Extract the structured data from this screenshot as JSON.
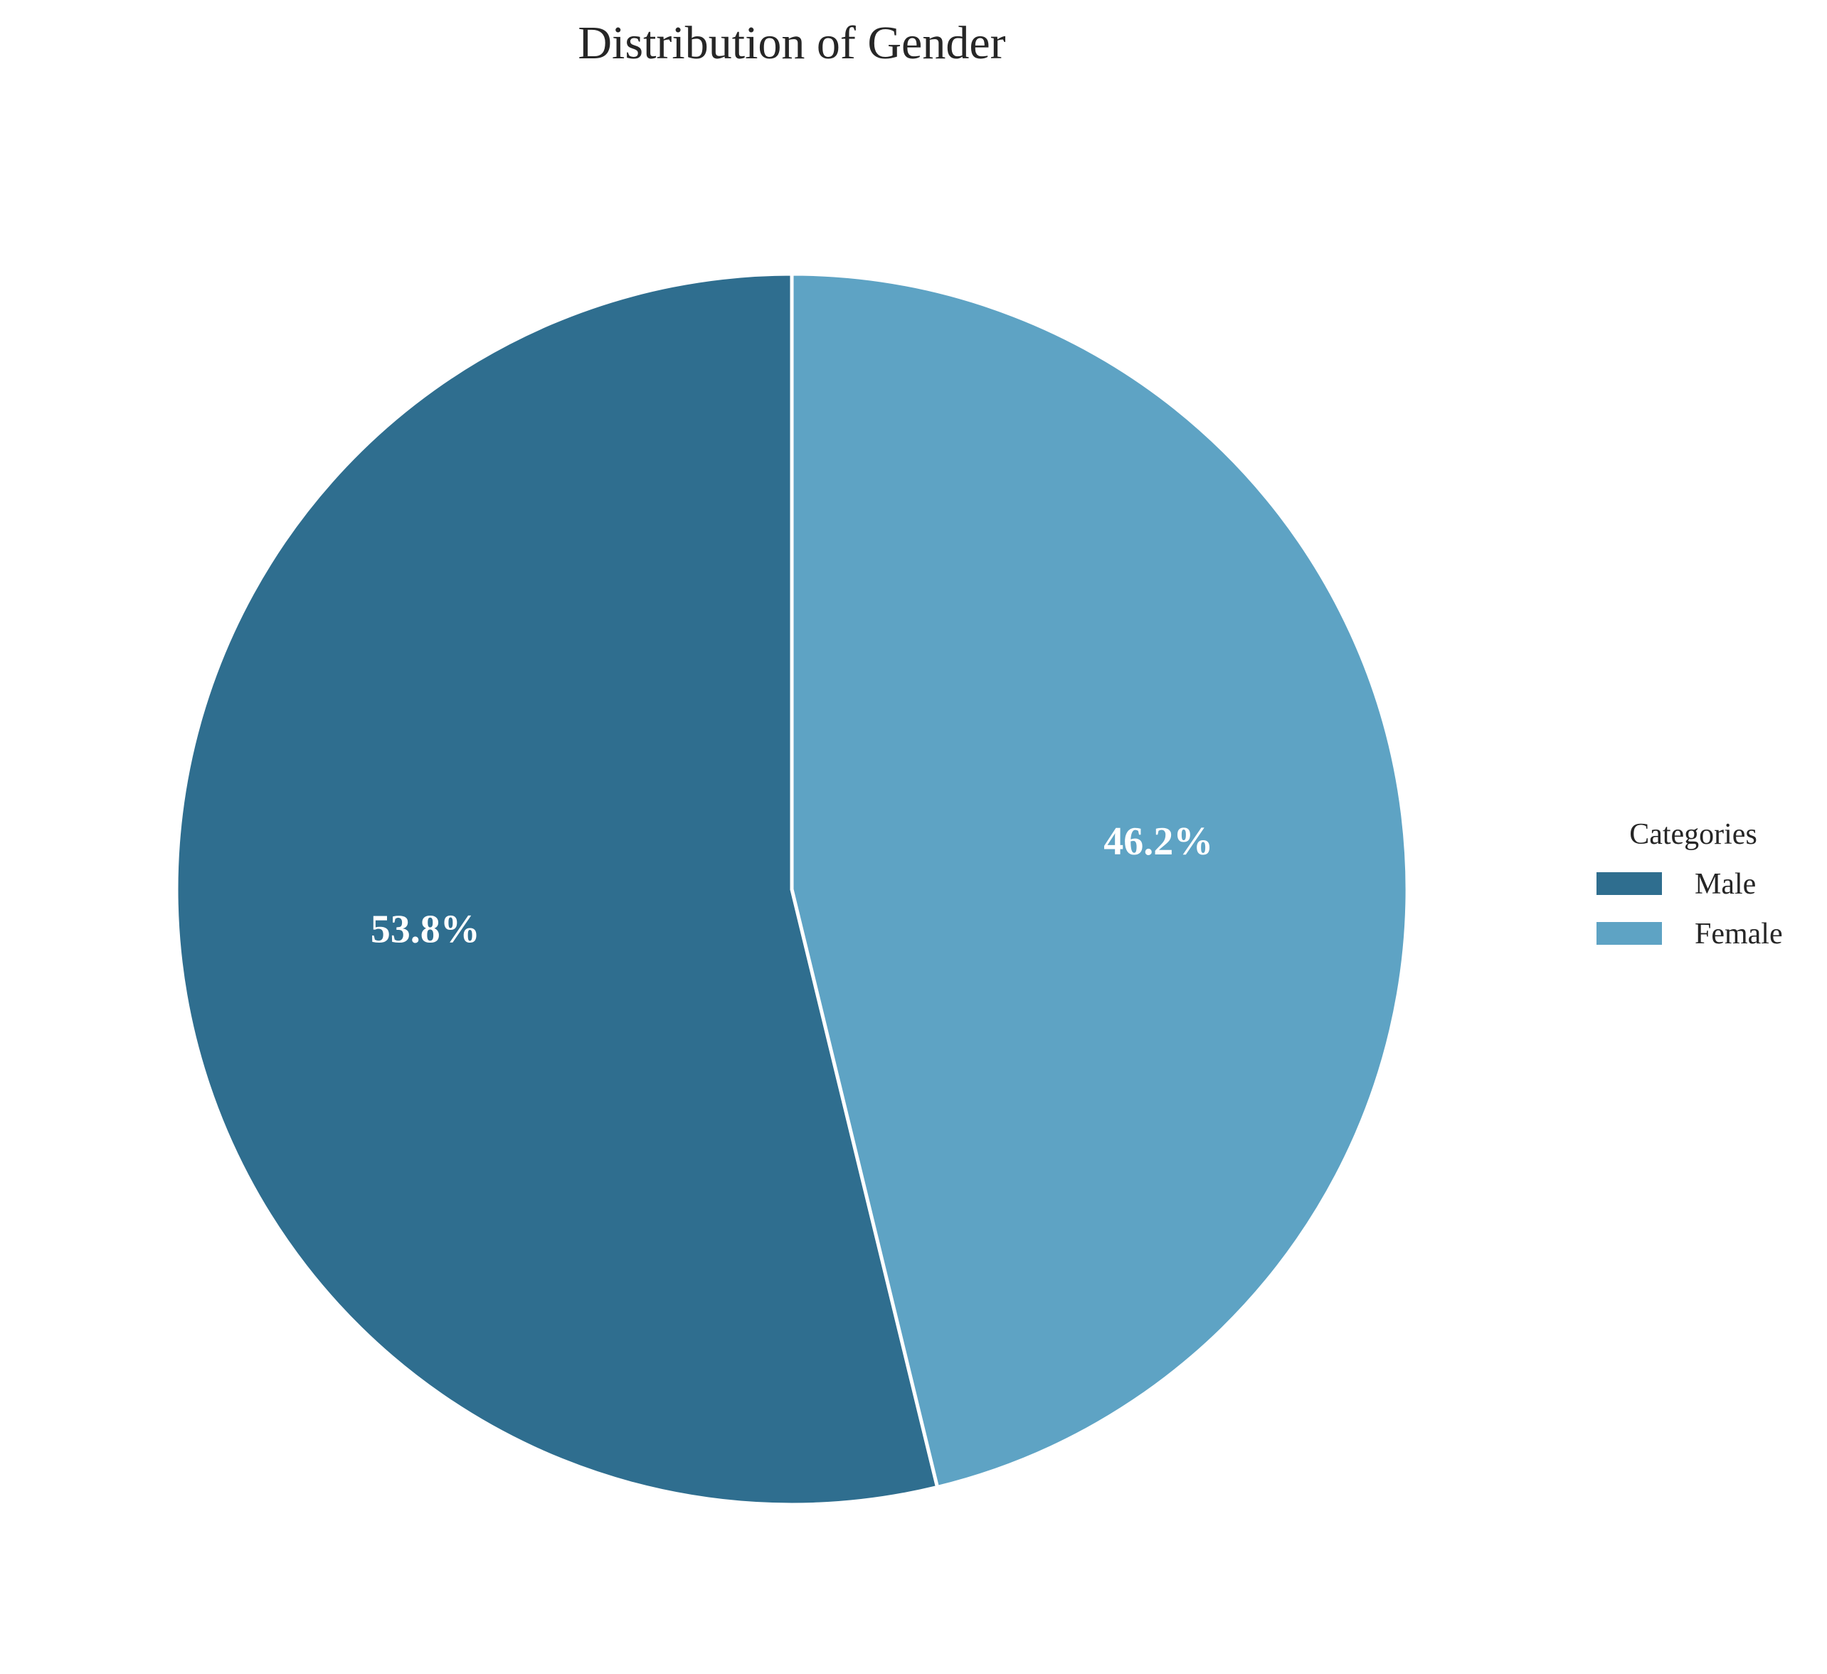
{
  "chart_data": {
    "type": "pie",
    "title": "Distribution of Gender",
    "categories": [
      "Male",
      "Female"
    ],
    "values": [
      53.8,
      46.2
    ],
    "labels": [
      "53.8%",
      "46.2%"
    ],
    "colors": [
      "#2f6e8f",
      "#5ea3c4"
    ],
    "start_angle_deg": 90,
    "direction": "counterclockwise",
    "legend": {
      "title": "Categories",
      "placement": "right"
    }
  }
}
